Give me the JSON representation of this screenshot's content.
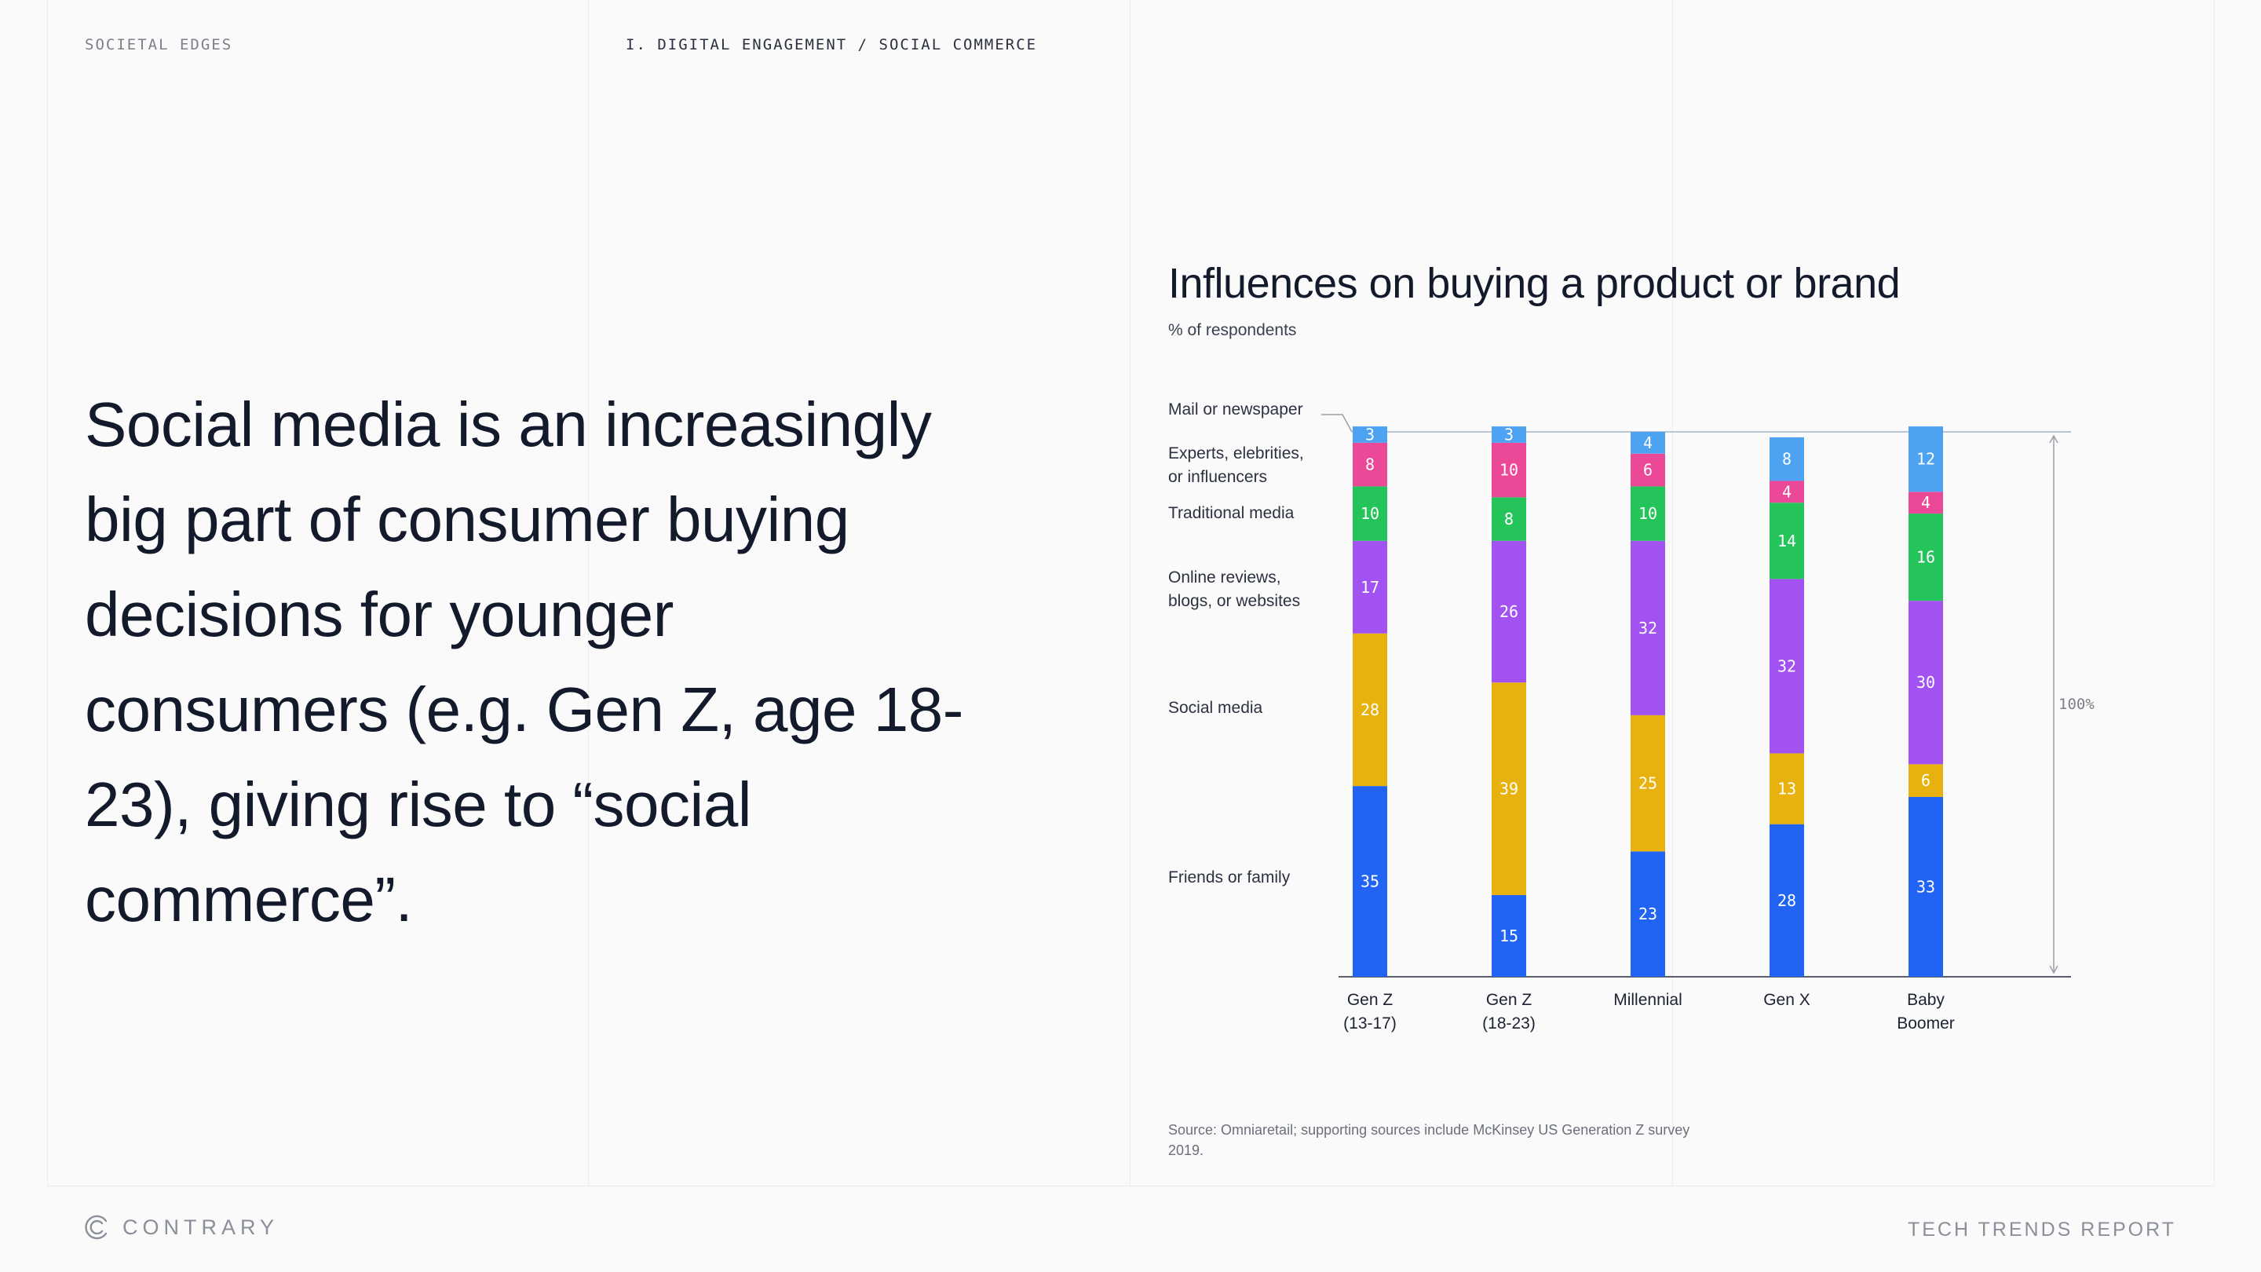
{
  "header": {
    "section": "SOCIETAL EDGES",
    "breadcrumb": "I. DIGITAL ENGAGEMENT / SOCIAL COMMERCE"
  },
  "headline": "Social media is an increasingly big part of consumer buying decisions for younger consumers (e.g. Gen Z, age 18-23), giving rise to “social commerce”.",
  "chart_data": {
    "type": "bar",
    "stacked": true,
    "title": "Influences on buying a product or brand",
    "subtitle": "% of respondents",
    "categories": [
      [
        "Gen Z",
        "(13-17)"
      ],
      [
        "Gen Z",
        "(18-23)"
      ],
      [
        "Millennial"
      ],
      [
        "Gen X"
      ],
      [
        "Baby",
        "Boomer"
      ]
    ],
    "series": [
      {
        "name": "Friends or family",
        "color": "#2164f3",
        "values": [
          35,
          15,
          23,
          28,
          33
        ]
      },
      {
        "name": "Social media",
        "color": "#e8b20e",
        "values": [
          28,
          39,
          25,
          13,
          6
        ]
      },
      {
        "name": "Online reviews, blogs, or websites",
        "color": "#a252f0",
        "values": [
          17,
          26,
          32,
          32,
          30
        ]
      },
      {
        "name": "Traditional media",
        "color": "#25c45b",
        "values": [
          10,
          8,
          10,
          14,
          16
        ]
      },
      {
        "name": "Experts, elebrities, or influencers",
        "color": "#ec4898",
        "values": [
          8,
          10,
          6,
          4,
          4
        ]
      },
      {
        "name": "Mail or newspaper",
        "color": "#4ea2f2",
        "values": [
          3,
          3,
          4,
          8,
          12
        ]
      }
    ],
    "legend_labels": [
      [
        "Mail or newspaper"
      ],
      [
        "Experts, elebrities,",
        "or influencers"
      ],
      [
        "Traditional media"
      ],
      [
        "Online reviews,",
        "blogs, or websites"
      ],
      [
        "Social media"
      ],
      [
        "Friends or family"
      ]
    ],
    "total_label": "100%",
    "legend": "left"
  },
  "source": "Source: Omniaretail; supporting sources include McKinsey US Generation Z survey 2019.",
  "footer": {
    "brand": "CONTRARY",
    "report": "TECH TRENDS REPORT"
  }
}
